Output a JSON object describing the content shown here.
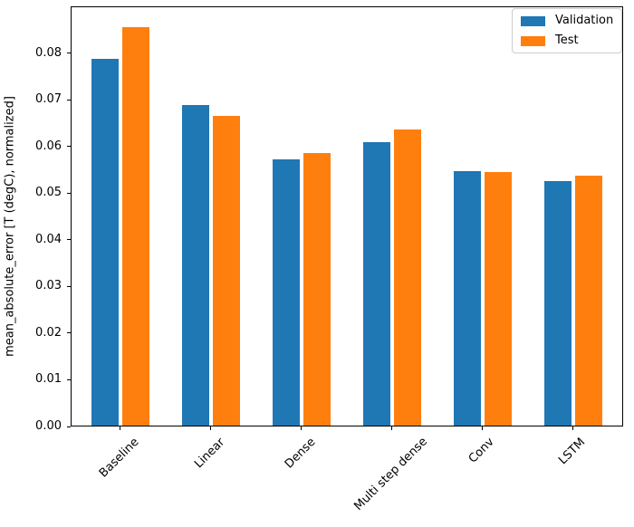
{
  "figure": {
    "background": "#ffffff",
    "text_color": "#000000",
    "spine_color": "#000000"
  },
  "chart_data": {
    "type": "bar",
    "title": "",
    "xlabel": "",
    "ylabel": "mean_absolute_error [T (degC), normalized]",
    "categories": [
      "Baseline",
      "Linear",
      "Dense",
      "Multi step dense",
      "Conv",
      "LSTM"
    ],
    "series": [
      {
        "name": "Validation",
        "color": "#1f77b4",
        "values": [
          0.0786,
          0.0686,
          0.057,
          0.0607,
          0.0546,
          0.0524
        ]
      },
      {
        "name": "Test",
        "color": "#ff7f0e",
        "values": [
          0.0853,
          0.0663,
          0.0584,
          0.0635,
          0.0544,
          0.0535
        ]
      }
    ],
    "ylim": [
      0,
      0.09
    ],
    "yticks": [
      0.0,
      0.01,
      0.02,
      0.03,
      0.04,
      0.05,
      0.06,
      0.07,
      0.08
    ],
    "ytick_labels": [
      "0.00",
      "0.01",
      "0.02",
      "0.03",
      "0.04",
      "0.05",
      "0.06",
      "0.07",
      "0.08"
    ],
    "xtick_rotation_deg": 45,
    "grid": false,
    "legend_position": "upper right"
  },
  "legend": {
    "items": [
      {
        "label": "Validation",
        "color": "#1f77b4"
      },
      {
        "label": "Test",
        "color": "#ff7f0e"
      }
    ]
  }
}
